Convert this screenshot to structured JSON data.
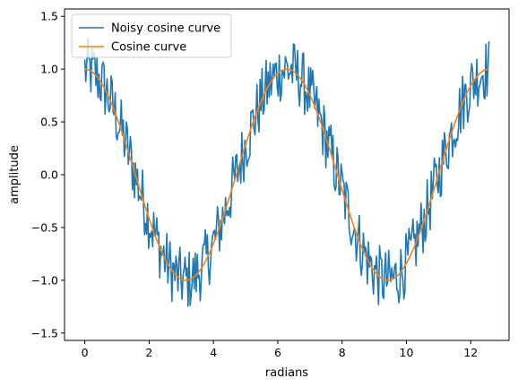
{
  "chart_data": {
    "type": "line",
    "title": "",
    "xlabel": "radians",
    "ylabel": "amplitude",
    "xlim": [
      -0.63,
      13.19
    ],
    "ylim": [
      -1.57,
      1.57
    ],
    "xticks": [
      0,
      2,
      4,
      6,
      8,
      10,
      12
    ],
    "yticks": [
      -1.5,
      -1.0,
      -0.5,
      0.0,
      0.5,
      1.0,
      1.5
    ],
    "xtick_labels": [
      "0",
      "2",
      "4",
      "6",
      "8",
      "10",
      "12"
    ],
    "ytick_labels": [
      "−1.5",
      "−1.0",
      "−0.5",
      "0.0",
      "0.5",
      "1.0",
      "1.5"
    ],
    "grid": false,
    "legend_position": "top-left",
    "series": [
      {
        "name": "Noisy cosine curve",
        "color": "#1f77b4",
        "x_range": [
          0,
          12.566
        ],
        "num_points": 400,
        "model": "cos(x) + uniform noise",
        "noise_amplitude": 0.3
      },
      {
        "name": "Cosine curve",
        "color": "#ff7f0e",
        "x_range": [
          0,
          12.566
        ],
        "num_points": 400,
        "model": "cos(x)"
      }
    ]
  }
}
